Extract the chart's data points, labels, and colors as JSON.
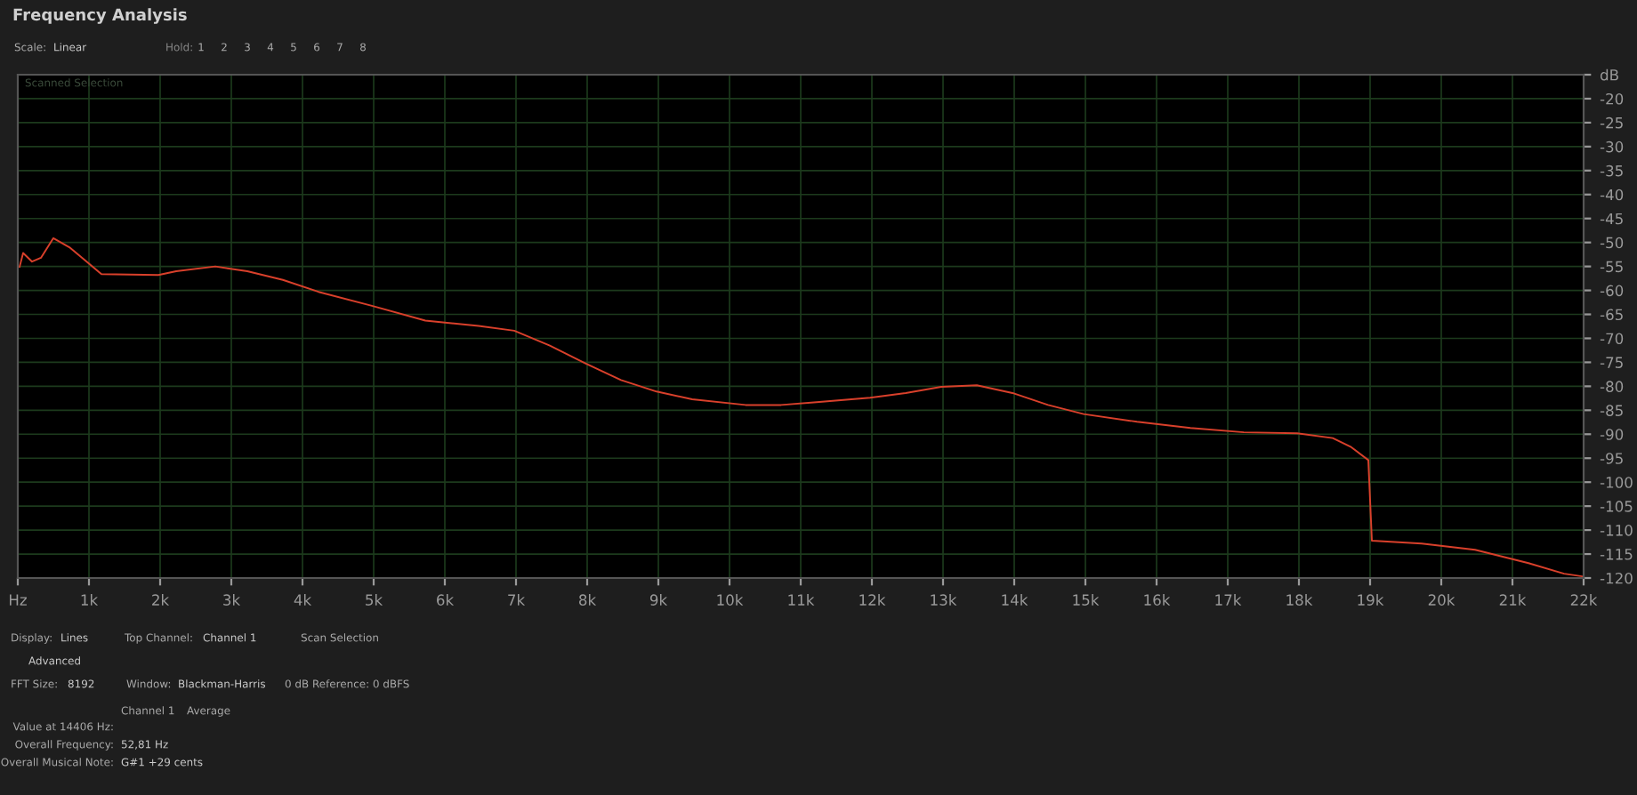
{
  "chart_data": {
    "type": "line",
    "title": "Frequency Analysis",
    "x": [
      25,
      75,
      200,
      325,
      500,
      725,
      975,
      1175,
      1975,
      2225,
      2775,
      3225,
      3725,
      4225,
      4975,
      5725,
      6475,
      6975,
      7475,
      7975,
      8475,
      8975,
      9475,
      10225,
      10725,
      11225,
      11975,
      12475,
      12975,
      13475,
      13975,
      14475,
      14975,
      15725,
      16475,
      17225,
      17975,
      18475,
      18725,
      18975,
      19025,
      19725,
      20475,
      21225,
      21725,
      22000
    ],
    "series": [
      {
        "color": "#d9402b",
        "values": [
          -55.1,
          -52.2,
          -54,
          -53.2,
          -49.1,
          -51,
          -54.1,
          -56.6,
          -56.8,
          -56,
          -55,
          -56,
          -57.8,
          -60.3,
          -63.2,
          -66.3,
          -67.4,
          -68.4,
          -71.5,
          -75.2,
          -78.7,
          -81.1,
          -82.7,
          -83.9,
          -83.9,
          -83.3,
          -82.4,
          -81.4,
          -80.1,
          -79.8,
          -81.4,
          -83.9,
          -85.8,
          -87.4,
          -88.7,
          -89.6,
          -89.8,
          -90.8,
          -92.6,
          -95.4,
          -112.2,
          -112.8,
          -114.1,
          -116.9,
          -119.1,
          -119.7
        ]
      }
    ],
    "xlim": [
      0,
      22000
    ],
    "xticks": [
      {
        "value": 0,
        "label": "Hz"
      },
      {
        "value": 1000,
        "label": "1k"
      },
      {
        "value": 2000,
        "label": "2k"
      },
      {
        "value": 3000,
        "label": "3k"
      },
      {
        "value": 4000,
        "label": "4k"
      },
      {
        "value": 5000,
        "label": "5k"
      },
      {
        "value": 6000,
        "label": "6k"
      },
      {
        "value": 7000,
        "label": "7k"
      },
      {
        "value": 8000,
        "label": "8k"
      },
      {
        "value": 9000,
        "label": "9k"
      },
      {
        "value": 10000,
        "label": "10k"
      },
      {
        "value": 11000,
        "label": "11k"
      },
      {
        "value": 12000,
        "label": "12k"
      },
      {
        "value": 13000,
        "label": "13k"
      },
      {
        "value": 14000,
        "label": "14k"
      },
      {
        "value": 15000,
        "label": "15k"
      },
      {
        "value": 16000,
        "label": "16k"
      },
      {
        "value": 17000,
        "label": "17k"
      },
      {
        "value": 18000,
        "label": "18k"
      },
      {
        "value": 19000,
        "label": "19k"
      },
      {
        "value": 20000,
        "label": "20k"
      },
      {
        "value": 21000,
        "label": "21k"
      },
      {
        "value": 22000,
        "label": "22k"
      }
    ],
    "ylim": [
      -120,
      -15
    ],
    "yticks": [
      {
        "value": -15,
        "label": "dB"
      },
      -20,
      -25,
      -30,
      -35,
      -40,
      -45,
      -50,
      -55,
      -60,
      -65,
      -70,
      -75,
      -80,
      -85,
      -90,
      -95,
      -100,
      -105,
      -110,
      -115,
      -120
    ],
    "grid": true,
    "annotations": [
      "Scale:",
      "Linear",
      "Hold:",
      "1",
      "2",
      "3",
      "4",
      "5",
      "6",
      "7",
      "8",
      "Scanned Selection",
      "Display:",
      "Lines",
      "Top Channel:",
      "Channel 1",
      "Scan Selection",
      "Advanced",
      "FFT Size:",
      "8192",
      "Window:",
      "Blackman-Harris",
      "0 dB Reference: 0 dBFS",
      "Channel 1",
      "Average",
      "Value at 14406 Hz:",
      "Overall Frequency:",
      "52,81 Hz",
      "Overall Musical Note:",
      "G#1 +29 cents"
    ]
  }
}
